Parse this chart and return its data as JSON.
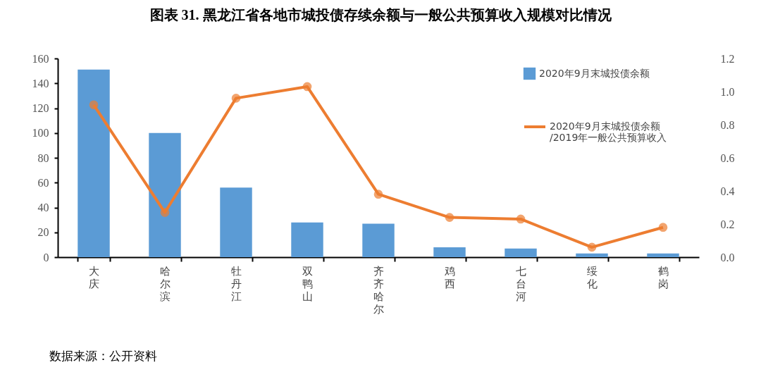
{
  "chart_data": {
    "type": "bar",
    "title": "图表 31. 黑龙江省各地市城投债存续余额与一般公共预算收入规模对比情况",
    "categories": [
      "大庆",
      "哈尔滨",
      "牡丹江",
      "双鸭山",
      "齐齐哈尔",
      "鸡西",
      "七台河",
      "绥化",
      "鹤岗"
    ],
    "series": [
      {
        "name": "2020年9月末城投债余额",
        "color": "#5b9bd5",
        "values": [
          151,
          100,
          56,
          28,
          27,
          8,
          7,
          3,
          3
        ]
      },
      {
        "name": "2020年9月末城投债余额\n/2019年一般公共预算收入",
        "type": "line",
        "axis": "y2",
        "color": "#ed7d31",
        "values": [
          0.92,
          0.27,
          0.96,
          1.03,
          0.38,
          0.24,
          0.23,
          0.06,
          0.18
        ]
      }
    ],
    "ylim": [
      0,
      160
    ],
    "yticks": [
      0,
      20,
      40,
      60,
      80,
      100,
      120,
      140,
      160
    ],
    "y2lim": [
      0,
      1.2
    ],
    "y2ticks": [
      {
        "value": 0,
        "label": "0.0"
      },
      {
        "value": 0.2,
        "label": "0.2"
      },
      {
        "value": 0.4,
        "label": "0.4"
      },
      {
        "value": 0.6,
        "label": "0.6"
      },
      {
        "value": 0.8,
        "label": "0.8"
      },
      {
        "value": 1,
        "label": "1.0"
      },
      {
        "value": 1.2,
        "label": "1.2"
      }
    ],
    "marker": "circle",
    "legend": "top right",
    "grid": false,
    "annotations": [
      "数据来源：公开资料"
    ]
  }
}
